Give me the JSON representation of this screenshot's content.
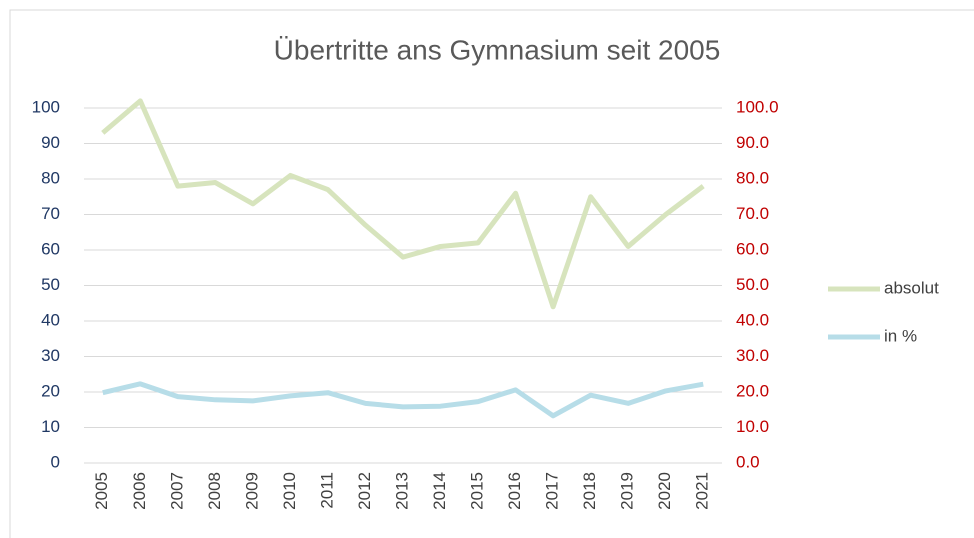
{
  "chart_data": {
    "type": "line",
    "title": "Übertritte ans Gymnasium seit 2005",
    "categories": [
      "2005",
      "2006",
      "2007",
      "2008",
      "2009",
      "2010",
      "2011",
      "2012",
      "2013",
      "2014",
      "2015",
      "2016",
      "2017",
      "2018",
      "2019",
      "2020",
      "2021"
    ],
    "series": [
      {
        "name": "absolut",
        "color": "#d7e4bd",
        "values": [
          93,
          102,
          78,
          79,
          73,
          81,
          77,
          67,
          58,
          61,
          62,
          76,
          44,
          75,
          61,
          70,
          78
        ]
      },
      {
        "name": "in %",
        "color": "#b7dde8",
        "axis": "y2",
        "values": [
          19.8,
          22.3,
          18.7,
          17.8,
          17.5,
          18.9,
          19.8,
          16.8,
          15.8,
          16.0,
          17.3,
          20.6,
          13.3,
          19.1,
          16.8,
          20.3,
          22.2
        ]
      }
    ],
    "ylim": [
      0,
      100
    ],
    "yticks": [
      0,
      10,
      20,
      30,
      40,
      50,
      60,
      70,
      80,
      90,
      100
    ],
    "y2lim": [
      0,
      100
    ],
    "y2ticks": [
      {
        "value": 0,
        "label": "0.0"
      },
      {
        "value": 10,
        "label": "10.0"
      },
      {
        "value": 20,
        "label": "20.0"
      },
      {
        "value": 30,
        "label": "30.0"
      },
      {
        "value": 40,
        "label": "40.0"
      },
      {
        "value": 50,
        "label": "50.0"
      },
      {
        "value": 60,
        "label": "60.0"
      },
      {
        "value": 70,
        "label": "70.0"
      },
      {
        "value": 80,
        "label": "80.0"
      },
      {
        "value": 90,
        "label": "90.0"
      },
      {
        "value": 100,
        "label": "100.0"
      }
    ],
    "grid": true,
    "legend": "right",
    "y_color": "#203864",
    "y2_color": "#c00000"
  }
}
